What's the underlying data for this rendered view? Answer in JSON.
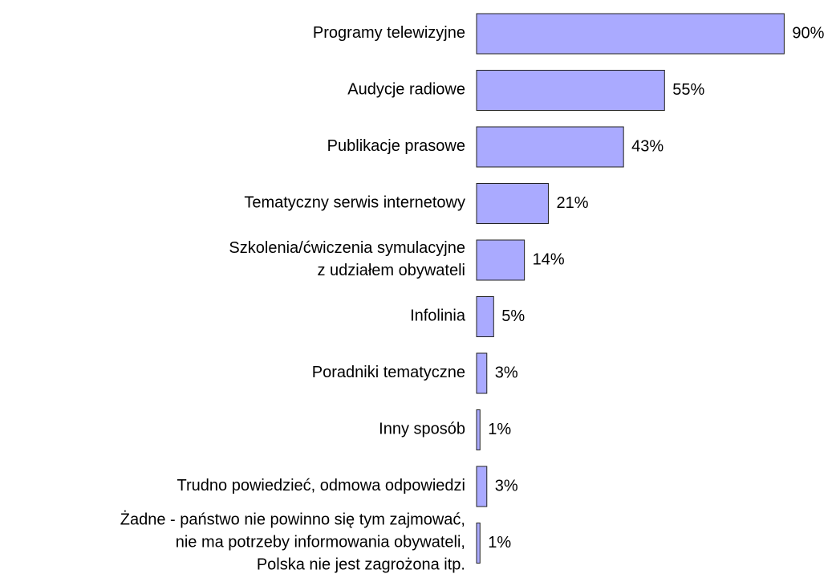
{
  "chart_data": {
    "type": "bar",
    "orientation": "horizontal",
    "categories": [
      [
        "Programy telewizyjne"
      ],
      [
        "Audycje radiowe"
      ],
      [
        "Publikacje prasowe"
      ],
      [
        "Tematyczny serwis internetowy"
      ],
      [
        "Szkolenia/ćwiczenia symulacyjne",
        "z udziałem obywateli"
      ],
      [
        "Infolinia"
      ],
      [
        "Poradniki tematyczne"
      ],
      [
        "Inny sposób"
      ],
      [
        "Trudno powiedzieć, odmowa odpowiedzi"
      ],
      [
        "Żadne - państwo nie powinno się tym zajmować,",
        "nie ma potrzeby informowania obywateli,",
        "Polska nie jest zagrożona itp."
      ]
    ],
    "values": [
      90,
      55,
      43,
      21,
      14,
      5,
      3,
      1,
      3,
      1
    ],
    "value_labels": [
      "90%",
      "55%",
      "43%",
      "21%",
      "14%",
      "5%",
      "3%",
      "1%",
      "3%",
      "1%"
    ],
    "color": "#aaaaff"
  }
}
